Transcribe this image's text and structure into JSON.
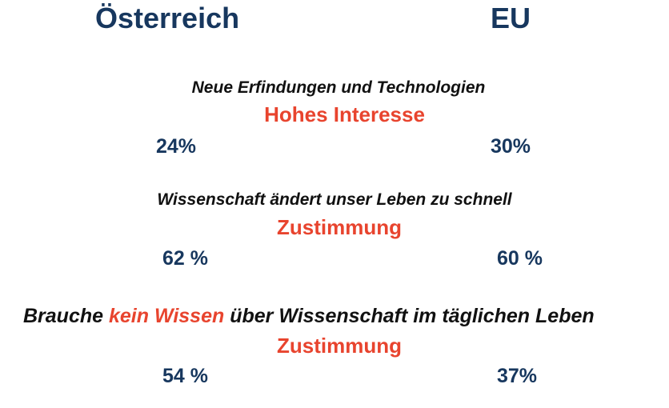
{
  "headers": {
    "left": "Österreich",
    "right": "EU"
  },
  "rows": [
    {
      "statement": "Neue Erfindungen und Technologien",
      "measure": "Hohes Interesse",
      "austria": "24%",
      "eu": "30%"
    },
    {
      "statement": "Wissenschaft ändert unser Leben zu schnell",
      "measure": "Zustimmung",
      "austria": "62 %",
      "eu": "60 %"
    },
    {
      "statement_parts": {
        "before": "Brauche ",
        "highlight": "kein Wissen",
        "after": " über Wissenschaft im täglichen Leben"
      },
      "measure": "Zustimmung",
      "austria": "54 %",
      "eu": "37%"
    }
  ],
  "colors": {
    "header_blue": "#17375e",
    "accent_red": "#e8442e",
    "text_black": "#111111"
  }
}
